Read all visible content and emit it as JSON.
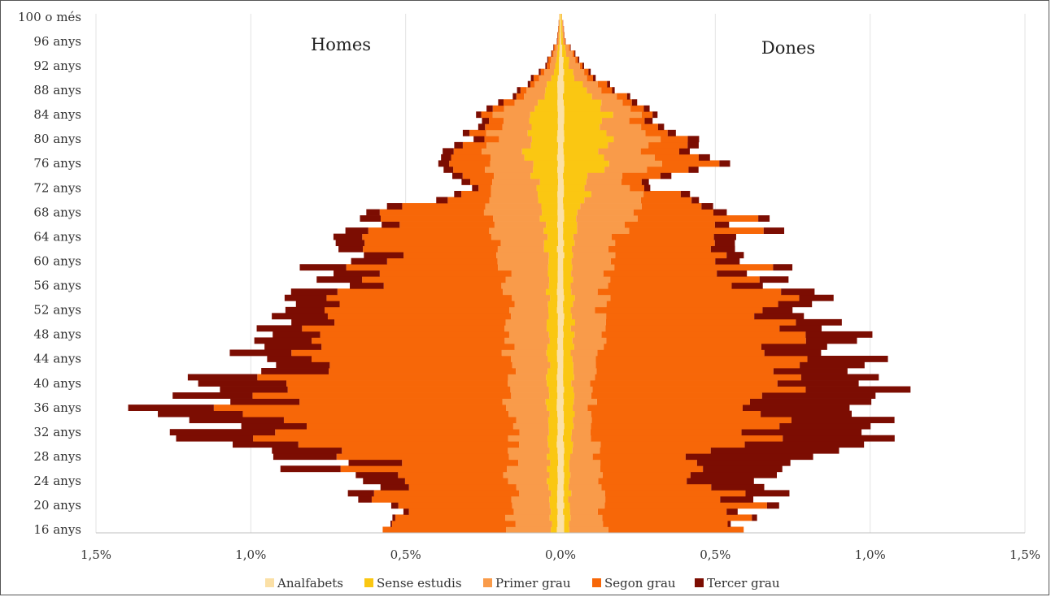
{
  "chart_data": {
    "type": "bar",
    "orientation": "horizontal",
    "layout": "population-pyramid",
    "stacked": true,
    "grid": true,
    "legend_position": "bottom",
    "left_label": "Homes",
    "right_label": "Dones",
    "xlim": [
      -1.5,
      1.5
    ],
    "x_unit": "%",
    "x_ticks": [
      {
        "value": -1.5,
        "label": "1,5%"
      },
      {
        "value": -1.0,
        "label": "1,0%"
      },
      {
        "value": -0.5,
        "label": "0,5%"
      },
      {
        "value": 0.0,
        "label": "0,0%"
      },
      {
        "value": 0.5,
        "label": "0,5%"
      },
      {
        "value": 1.0,
        "label": "1,0%"
      },
      {
        "value": 1.5,
        "label": "1,5%"
      }
    ],
    "y_tick_labels": [
      "100 o més",
      "96 anys",
      "92 anys",
      "88 anys",
      "84 anys",
      "80 anys",
      "76 anys",
      "72 anys",
      "68 anys",
      "64 anys",
      "60 anys",
      "56 anys",
      "52 anys",
      "48 anys",
      "44 anys",
      "40 anys",
      "36 anys",
      "32 anys",
      "28 anys",
      "24 anys",
      "20 anys",
      "16 anys"
    ],
    "legend_title": "",
    "series": [
      {
        "name": "Analfabets",
        "color": "#fbe0a6"
      },
      {
        "name": "Sense estudis",
        "color": "#fac712"
      },
      {
        "name": "Primer grau",
        "color": "#f99b4a"
      },
      {
        "name": "Segon grau",
        "color": "#f76708"
      },
      {
        "name": "Tercer grau",
        "color": "#7c0d02"
      }
    ],
    "age_groups": [
      {
        "age": "16",
        "homes": [
          0.01,
          0.02,
          0.12,
          0.4,
          0.0
        ],
        "dones": [
          0.01,
          0.02,
          0.13,
          0.45,
          0.0
        ]
      },
      {
        "age": "20",
        "homes": [
          0.01,
          0.02,
          0.12,
          0.44,
          0.02
        ],
        "dones": [
          0.01,
          0.02,
          0.11,
          0.44,
          0.04
        ]
      },
      {
        "age": "24",
        "homes": [
          0.01,
          0.03,
          0.13,
          0.39,
          0.12
        ],
        "dones": [
          0.01,
          0.02,
          0.1,
          0.35,
          0.23
        ]
      },
      {
        "age": "28",
        "homes": [
          0.01,
          0.03,
          0.12,
          0.49,
          0.2
        ],
        "dones": [
          0.01,
          0.02,
          0.08,
          0.37,
          0.4
        ]
      },
      {
        "age": "32",
        "homes": [
          0.01,
          0.03,
          0.12,
          0.79,
          0.28
        ],
        "dones": [
          0.01,
          0.03,
          0.07,
          0.56,
          0.38
        ]
      },
      {
        "age": "36",
        "homes": [
          0.01,
          0.03,
          0.12,
          0.79,
          0.25
        ],
        "dones": [
          0.01,
          0.03,
          0.06,
          0.62,
          0.36
        ]
      },
      {
        "age": "40",
        "homes": [
          0.01,
          0.03,
          0.13,
          0.76,
          0.25
        ],
        "dones": [
          0.01,
          0.03,
          0.07,
          0.58,
          0.25
        ]
      },
      {
        "age": "44",
        "homes": [
          0.01,
          0.03,
          0.12,
          0.73,
          0.17
        ],
        "dones": [
          0.01,
          0.03,
          0.08,
          0.59,
          0.22
        ]
      },
      {
        "age": "48",
        "homes": [
          0.01,
          0.03,
          0.12,
          0.64,
          0.17
        ],
        "dones": [
          0.01,
          0.03,
          0.1,
          0.56,
          0.18
        ]
      },
      {
        "age": "52",
        "homes": [
          0.01,
          0.03,
          0.13,
          0.57,
          0.16
        ],
        "dones": [
          0.01,
          0.03,
          0.1,
          0.54,
          0.12
        ]
      },
      {
        "age": "56",
        "homes": [
          0.01,
          0.03,
          0.13,
          0.46,
          0.14
        ],
        "dones": [
          0.01,
          0.03,
          0.11,
          0.48,
          0.09
        ]
      },
      {
        "age": "60",
        "homes": [
          0.01,
          0.03,
          0.14,
          0.38,
          0.12
        ],
        "dones": [
          0.01,
          0.03,
          0.13,
          0.4,
          0.07
        ]
      },
      {
        "age": "64",
        "homes": [
          0.01,
          0.04,
          0.16,
          0.36,
          0.08
        ],
        "dones": [
          0.01,
          0.04,
          0.15,
          0.38,
          0.06
        ]
      },
      {
        "age": "68",
        "homes": [
          0.01,
          0.05,
          0.17,
          0.3,
          0.05
        ],
        "dones": [
          0.01,
          0.05,
          0.18,
          0.3,
          0.04
        ]
      },
      {
        "age": "72",
        "homes": [
          0.01,
          0.07,
          0.13,
          0.04,
          0.02
        ],
        "dones": [
          0.01,
          0.08,
          0.14,
          0.05,
          0.02
        ]
      },
      {
        "age": "76",
        "homes": [
          0.01,
          0.09,
          0.13,
          0.13,
          0.04
        ],
        "dones": [
          0.01,
          0.12,
          0.15,
          0.16,
          0.04
        ]
      },
      {
        "age": "80",
        "homes": [
          0.01,
          0.1,
          0.12,
          0.06,
          0.03
        ],
        "dones": [
          0.01,
          0.15,
          0.13,
          0.09,
          0.03
        ]
      },
      {
        "age": "84",
        "homes": [
          0.01,
          0.08,
          0.1,
          0.04,
          0.02
        ],
        "dones": [
          0.01,
          0.13,
          0.1,
          0.04,
          0.02
        ]
      },
      {
        "age": "88",
        "homes": [
          0.01,
          0.04,
          0.05,
          0.02,
          0.01
        ],
        "dones": [
          0.01,
          0.07,
          0.06,
          0.03,
          0.01
        ]
      },
      {
        "age": "92",
        "homes": [
          0.005,
          0.01,
          0.02,
          0.01,
          0.005
        ],
        "dones": [
          0.01,
          0.02,
          0.03,
          0.01,
          0.005
        ]
      },
      {
        "age": "96",
        "homes": [
          0.002,
          0.003,
          0.004,
          0.002,
          0.001
        ],
        "dones": [
          0.003,
          0.005,
          0.006,
          0.002,
          0.001
        ]
      },
      {
        "age": "100",
        "homes": [
          0.001,
          0.002,
          0.001,
          0.0,
          0.0
        ],
        "dones": [
          0.002,
          0.002,
          0.001,
          0.0,
          0.0
        ]
      }
    ]
  }
}
